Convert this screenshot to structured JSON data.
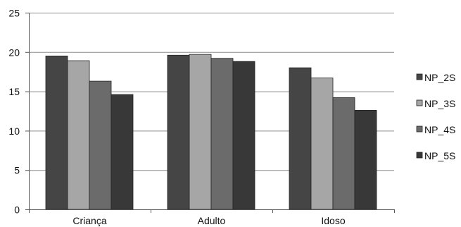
{
  "chart_data": {
    "type": "bar",
    "categories": [
      "Criança",
      "Adulto",
      "Idoso"
    ],
    "series": [
      {
        "name": "NP_2S",
        "values": [
          19.5,
          19.6,
          18.0
        ],
        "color": "#454545"
      },
      {
        "name": "NP_3S",
        "values": [
          18.9,
          19.7,
          16.7
        ],
        "color": "#a6a6a6"
      },
      {
        "name": "NP_4S",
        "values": [
          16.3,
          19.2,
          14.2
        ],
        "color": "#6b6b6b"
      },
      {
        "name": "NP_5S",
        "values": [
          14.6,
          18.8,
          12.6
        ],
        "color": "#383838"
      }
    ],
    "ylim": [
      0,
      25
    ],
    "yticks": [
      0,
      5,
      10,
      15,
      20,
      25
    ],
    "grid": true,
    "legend_position": "right"
  }
}
